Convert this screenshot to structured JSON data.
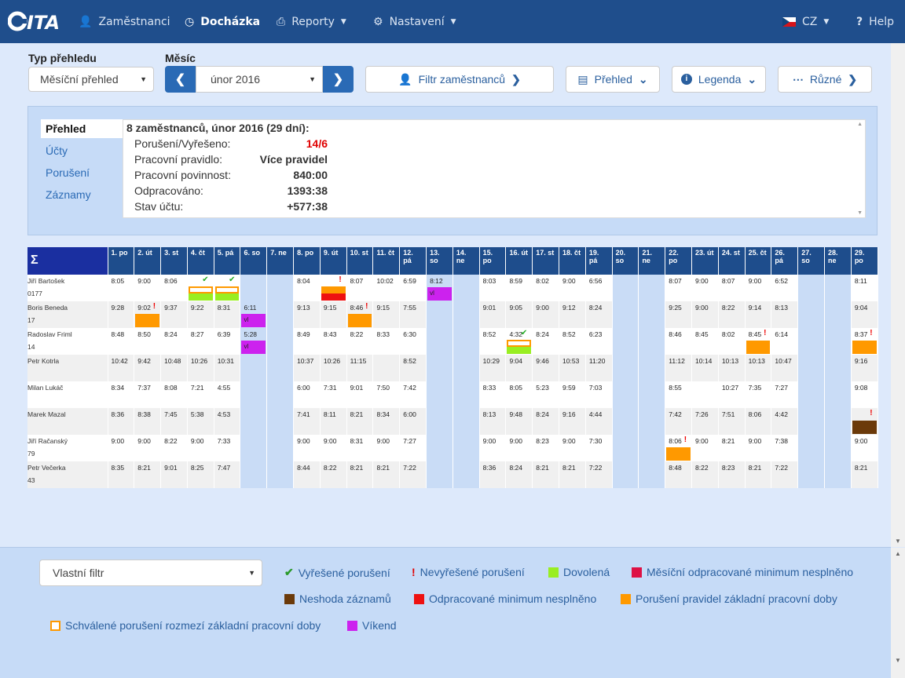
{
  "nav": {
    "logo": "ITA",
    "items": [
      {
        "label": "Zaměstnanci"
      },
      {
        "label": "Docházka"
      },
      {
        "label": "Reporty"
      },
      {
        "label": "Nastavení"
      }
    ],
    "lang": "CZ",
    "help": "Help"
  },
  "toolbar": {
    "type_label": "Typ přehledu",
    "type_value": "Měsíční přehled",
    "month_label": "Měsíc",
    "month_value": "únor 2016",
    "filter": "Filtr zaměstnanců",
    "prehled": "Přehled",
    "legenda": "Legenda",
    "ruzne": "Různé"
  },
  "panel": {
    "tabs": [
      "Přehled",
      "Účty",
      "Porušení",
      "Záznamy"
    ],
    "header": "8 zaměstnanců, únor 2016 (29 dní):",
    "rows": [
      {
        "label": "Porušení/Vyřešeno:",
        "value": "14/6",
        "color": "#e00000"
      },
      {
        "label": "Pracovní pravidlo:",
        "value": "Více pravidel"
      },
      {
        "label": "Pracovní povinnost:",
        "value": "840:00"
      },
      {
        "label": "Odpracováno:",
        "value": "1393:38"
      },
      {
        "label": "Stav účtu:",
        "value": "+577:38"
      }
    ]
  },
  "grid": {
    "sigma": "Σ",
    "days": [
      "1. po",
      "2. út",
      "3. st",
      "4. čt",
      "5. pá",
      "6. so",
      "7. ne",
      "8. po",
      "9. út",
      "10. st",
      "11. čt",
      "12. pá",
      "13. so",
      "14. ne",
      "15. po",
      "16. út",
      "17. st",
      "18. čt",
      "19. pá",
      "20. so",
      "21. ne",
      "22. po",
      "23. út",
      "24. st",
      "25. čt",
      "26. pá",
      "27. so",
      "28. ne",
      "29. po"
    ],
    "weekend": [
      5,
      6,
      12,
      13,
      19,
      20,
      26,
      27
    ],
    "employees": [
      {
        "name": "Jiří Bartošek",
        "id": "0177",
        "times": [
          "8:05",
          "9:00",
          "8:06",
          "",
          "",
          "",
          "",
          "8:04",
          "",
          "8:07",
          "10:02",
          "6:59",
          "8:12",
          "",
          "8:03",
          "8:59",
          "8:02",
          "9:00",
          "6:56",
          "",
          "",
          "8:07",
          "9:00",
          "8:07",
          "9:00",
          "6:52",
          "",
          "",
          "8:11"
        ]
      },
      {
        "name": "Boris Beneda",
        "id": "17",
        "times": [
          "9:28",
          "9:02",
          "9:37",
          "9:22",
          "8:31",
          "6:11",
          "",
          "9:13",
          "9:15",
          "8:46",
          "9:15",
          "7:55",
          "",
          "",
          "9:01",
          "9:05",
          "9:00",
          "9:12",
          "8:24",
          "",
          "",
          "9:25",
          "9:00",
          "8:22",
          "9:14",
          "8:13",
          "",
          "",
          "9:04"
        ]
      },
      {
        "name": "Radoslav Friml",
        "id": "14",
        "times": [
          "8:48",
          "8:50",
          "8:24",
          "8:27",
          "6:39",
          "5:28",
          "",
          "8:49",
          "8:43",
          "8:22",
          "8:33",
          "6:30",
          "",
          "",
          "8:52",
          "4:32",
          "8:24",
          "8:52",
          "6:23",
          "",
          "",
          "8:46",
          "8:45",
          "8:02",
          "8:45",
          "6:14",
          "",
          "",
          "8:37"
        ]
      },
      {
        "name": "Petr Kotrla",
        "id": "",
        "times": [
          "10:42",
          "9:42",
          "10:48",
          "10:26",
          "10:31",
          "",
          "",
          "10:37",
          "10:26",
          "11:15",
          "",
          "8:52",
          "",
          "",
          "10:29",
          "9:04",
          "9:46",
          "10:53",
          "11:20",
          "",
          "",
          "11:12",
          "10:14",
          "10:13",
          "10:13",
          "10:47",
          "",
          "",
          "9:16"
        ]
      },
      {
        "name": "Milan Lukáč",
        "id": "",
        "times": [
          "8:34",
          "7:37",
          "8:08",
          "7:21",
          "4:55",
          "",
          "",
          "6:00",
          "7:31",
          "9:01",
          "7:50",
          "7:42",
          "",
          "",
          "8:33",
          "8:05",
          "5:23",
          "9:59",
          "7:03",
          "",
          "",
          "8:55",
          "",
          "10:27",
          "7:35",
          "7:27",
          "",
          "",
          "9:08"
        ]
      },
      {
        "name": "Marek Mazal",
        "id": "",
        "times": [
          "8:36",
          "8:38",
          "7:45",
          "5:38",
          "4:53",
          "",
          "",
          "7:41",
          "8:11",
          "8:21",
          "8:34",
          "6:00",
          "",
          "",
          "8:13",
          "9:48",
          "8:24",
          "9:16",
          "4:44",
          "",
          "",
          "7:42",
          "7:26",
          "7:51",
          "8:06",
          "4:42",
          "",
          "",
          ""
        ]
      },
      {
        "name": "Jiří Račanský",
        "id": "79",
        "times": [
          "9:00",
          "9:00",
          "8:22",
          "9:00",
          "7:33",
          "",
          "",
          "9:00",
          "9:00",
          "8:31",
          "9:00",
          "7:27",
          "",
          "",
          "9:00",
          "9:00",
          "8:23",
          "9:00",
          "7:30",
          "",
          "",
          "8:06",
          "9:00",
          "8:21",
          "9:00",
          "7:38",
          "",
          "",
          "9:00"
        ]
      },
      {
        "name": "Petr Večerka",
        "id": "43",
        "times": [
          "8:35",
          "8:21",
          "9:01",
          "8:25",
          "7:47",
          "",
          "",
          "8:44",
          "8:22",
          "8:21",
          "8:21",
          "7:22",
          "",
          "",
          "8:36",
          "8:24",
          "8:21",
          "8:21",
          "7:22",
          "",
          "",
          "8:48",
          "8:22",
          "8:23",
          "8:21",
          "7:22",
          "",
          "",
          "8:21"
        ]
      }
    ],
    "marks": [
      {
        "r": 0,
        "c": 3,
        "check": true,
        "boxes": [
          "oo",
          "g"
        ]
      },
      {
        "r": 0,
        "c": 4,
        "check": true,
        "boxes": [
          "oo",
          "g"
        ]
      },
      {
        "r": 0,
        "c": 8,
        "excl": true,
        "boxes": [
          "o",
          "r"
        ]
      },
      {
        "r": 0,
        "c": 12,
        "boxes": [
          "v"
        ],
        "text": "vl"
      },
      {
        "r": 1,
        "c": 1,
        "excl": true,
        "boxes": [
          "o"
        ]
      },
      {
        "r": 1,
        "c": 5,
        "boxes": [
          "v"
        ],
        "text": "vl"
      },
      {
        "r": 1,
        "c": 9,
        "excl": true,
        "boxes": [
          "o"
        ]
      },
      {
        "r": 2,
        "c": 5,
        "boxes": [
          "v"
        ],
        "text": "vl"
      },
      {
        "r": 2,
        "c": 15,
        "check": true,
        "boxes": [
          "oo",
          "g"
        ]
      },
      {
        "r": 2,
        "c": 24,
        "excl": true,
        "boxes": [
          "o"
        ]
      },
      {
        "r": 2,
        "c": 28,
        "excl": true,
        "boxes": [
          "o"
        ]
      },
      {
        "r": 5,
        "c": 28,
        "excl": true,
        "boxes": [
          "b"
        ]
      },
      {
        "r": 6,
        "c": 21,
        "excl": true,
        "boxes": [
          "o"
        ]
      }
    ]
  },
  "legend": {
    "filter": "Vlastní filtr",
    "items": [
      {
        "label": "Vyřešené porušení",
        "kind": "check",
        "color": "#2a9a2a"
      },
      {
        "label": "Nevyřešené porušení",
        "kind": "excl",
        "color": "#e00000"
      },
      {
        "label": "Dovolená",
        "kind": "sq",
        "color": "#99ee22"
      },
      {
        "label": "Měsíční odpracované minimum nesplněno",
        "kind": "sq",
        "color": "#dd1144"
      },
      {
        "label": "Neshoda záznamů",
        "kind": "sq",
        "color": "#6b3a0a"
      },
      {
        "label": "Odpracované minimum nesplněno",
        "kind": "sq",
        "color": "#ee1111"
      },
      {
        "label": "Porušení pravidel základní pracovní doby",
        "kind": "sq",
        "color": "#ff9900"
      },
      {
        "label": "Schválené porušení rozmezí základní pracovní doby",
        "kind": "outline",
        "color": "#ff9900"
      },
      {
        "label": "Víkend",
        "kind": "sq",
        "color": "#cc22ee"
      }
    ]
  }
}
